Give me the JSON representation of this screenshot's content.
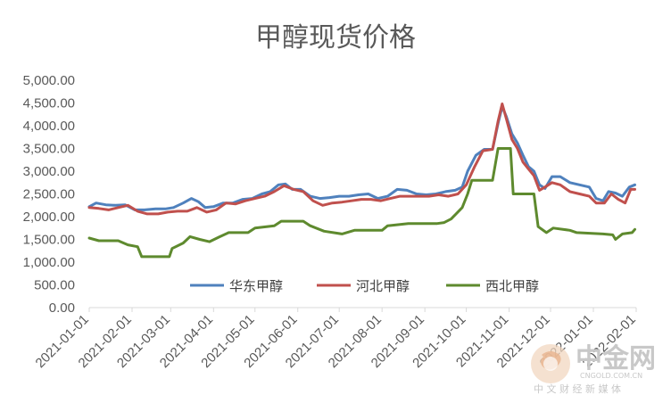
{
  "chart_data": {
    "type": "line",
    "title": "甲醇现货价格",
    "xlabel": "",
    "ylabel": "",
    "ylim": [
      0,
      5000
    ],
    "yticks": [
      "0.00",
      "500.00",
      "1,000.00",
      "1,500.00",
      "2,000.00",
      "2,500.00",
      "3,000.00",
      "3,500.00",
      "4,000.00",
      "4,500.00",
      "5,000.00"
    ],
    "xticks": [
      "2021-01-01",
      "2021-02-01",
      "2021-03-01",
      "2021-04-01",
      "2021-05-01",
      "2021-06-01",
      "2021-07-01",
      "2021-08-01",
      "2021-09-01",
      "2021-10-01",
      "2021-11-01",
      "2021-12-01",
      "2022-01-01",
      "2022-02-01"
    ],
    "xrange": [
      "2021-01-01",
      "2022-02-01"
    ],
    "grid": false,
    "legend": "bottom-center",
    "series": [
      {
        "name": "华东甲醇",
        "color": "#4f81bd",
        "points": [
          [
            "2021-01-01",
            2220
          ],
          [
            "2021-01-06",
            2300
          ],
          [
            "2021-01-13",
            2260
          ],
          [
            "2021-01-20",
            2250
          ],
          [
            "2021-01-27",
            2260
          ],
          [
            "2021-02-03",
            2150
          ],
          [
            "2021-02-10",
            2150
          ],
          [
            "2021-02-18",
            2170
          ],
          [
            "2021-02-25",
            2170
          ],
          [
            "2021-03-03",
            2200
          ],
          [
            "2021-03-10",
            2300
          ],
          [
            "2021-03-16",
            2400
          ],
          [
            "2021-03-21",
            2330
          ],
          [
            "2021-03-26",
            2200
          ],
          [
            "2021-04-01",
            2220
          ],
          [
            "2021-04-08",
            2300
          ],
          [
            "2021-04-15",
            2300
          ],
          [
            "2021-04-22",
            2380
          ],
          [
            "2021-04-29",
            2400
          ],
          [
            "2021-05-06",
            2500
          ],
          [
            "2021-05-12",
            2550
          ],
          [
            "2021-05-18",
            2700
          ],
          [
            "2021-05-23",
            2720
          ],
          [
            "2021-05-28",
            2600
          ],
          [
            "2021-06-03",
            2600
          ],
          [
            "2021-06-10",
            2450
          ],
          [
            "2021-06-17",
            2400
          ],
          [
            "2021-06-24",
            2420
          ],
          [
            "2021-07-01",
            2450
          ],
          [
            "2021-07-08",
            2450
          ],
          [
            "2021-07-15",
            2480
          ],
          [
            "2021-07-22",
            2500
          ],
          [
            "2021-07-29",
            2400
          ],
          [
            "2021-08-05",
            2450
          ],
          [
            "2021-08-12",
            2600
          ],
          [
            "2021-08-19",
            2580
          ],
          [
            "2021-08-26",
            2500
          ],
          [
            "2021-09-02",
            2480
          ],
          [
            "2021-09-09",
            2500
          ],
          [
            "2021-09-16",
            2550
          ],
          [
            "2021-09-23",
            2580
          ],
          [
            "2021-09-28",
            2650
          ],
          [
            "2021-10-02",
            3000
          ],
          [
            "2021-10-08",
            3350
          ],
          [
            "2021-10-14",
            3480
          ],
          [
            "2021-10-20",
            3480
          ],
          [
            "2021-10-24",
            4050
          ],
          [
            "2021-10-27",
            4420
          ],
          [
            "2021-10-30",
            4200
          ],
          [
            "2021-11-03",
            3820
          ],
          [
            "2021-11-07",
            3620
          ],
          [
            "2021-11-11",
            3350
          ],
          [
            "2021-11-15",
            3100
          ],
          [
            "2021-11-19",
            3000
          ],
          [
            "2021-11-23",
            2700
          ],
          [
            "2021-11-27",
            2620
          ],
          [
            "2021-12-02",
            2880
          ],
          [
            "2021-12-08",
            2880
          ],
          [
            "2021-12-15",
            2750
          ],
          [
            "2021-12-22",
            2700
          ],
          [
            "2021-12-29",
            2650
          ],
          [
            "2022-01-03",
            2400
          ],
          [
            "2022-01-08",
            2350
          ],
          [
            "2022-01-12",
            2550
          ],
          [
            "2022-01-17",
            2520
          ],
          [
            "2022-01-22",
            2450
          ],
          [
            "2022-01-27",
            2650
          ],
          [
            "2022-01-31",
            2700
          ]
        ]
      },
      {
        "name": "河北甲醇",
        "color": "#c0504d",
        "points": [
          [
            "2021-01-01",
            2200
          ],
          [
            "2021-01-08",
            2180
          ],
          [
            "2021-01-15",
            2150
          ],
          [
            "2021-01-22",
            2200
          ],
          [
            "2021-01-29",
            2250
          ],
          [
            "2021-02-05",
            2120
          ],
          [
            "2021-02-12",
            2060
          ],
          [
            "2021-02-20",
            2060
          ],
          [
            "2021-02-27",
            2100
          ],
          [
            "2021-03-06",
            2120
          ],
          [
            "2021-03-13",
            2120
          ],
          [
            "2021-03-20",
            2200
          ],
          [
            "2021-03-27",
            2100
          ],
          [
            "2021-04-03",
            2150
          ],
          [
            "2021-04-10",
            2300
          ],
          [
            "2021-04-17",
            2280
          ],
          [
            "2021-04-24",
            2350
          ],
          [
            "2021-05-01",
            2400
          ],
          [
            "2021-05-08",
            2450
          ],
          [
            "2021-05-15",
            2550
          ],
          [
            "2021-05-22",
            2680
          ],
          [
            "2021-05-29",
            2600
          ],
          [
            "2021-06-05",
            2550
          ],
          [
            "2021-06-12",
            2350
          ],
          [
            "2021-06-19",
            2250
          ],
          [
            "2021-06-26",
            2300
          ],
          [
            "2021-07-03",
            2320
          ],
          [
            "2021-07-10",
            2350
          ],
          [
            "2021-07-17",
            2380
          ],
          [
            "2021-07-24",
            2380
          ],
          [
            "2021-07-31",
            2350
          ],
          [
            "2021-08-07",
            2400
          ],
          [
            "2021-08-14",
            2450
          ],
          [
            "2021-08-21",
            2450
          ],
          [
            "2021-08-28",
            2450
          ],
          [
            "2021-09-04",
            2450
          ],
          [
            "2021-09-11",
            2480
          ],
          [
            "2021-09-18",
            2450
          ],
          [
            "2021-09-25",
            2500
          ],
          [
            "2021-10-01",
            2700
          ],
          [
            "2021-10-07",
            3100
          ],
          [
            "2021-10-13",
            3450
          ],
          [
            "2021-10-20",
            3480
          ],
          [
            "2021-10-24",
            4100
          ],
          [
            "2021-10-27",
            4480
          ],
          [
            "2021-10-30",
            4150
          ],
          [
            "2021-11-03",
            3700
          ],
          [
            "2021-11-07",
            3500
          ],
          [
            "2021-11-11",
            3200
          ],
          [
            "2021-11-15",
            3050
          ],
          [
            "2021-11-19",
            2900
          ],
          [
            "2021-11-23",
            2580
          ],
          [
            "2021-11-27",
            2650
          ],
          [
            "2021-12-02",
            2750
          ],
          [
            "2021-12-08",
            2700
          ],
          [
            "2021-12-15",
            2550
          ],
          [
            "2021-12-22",
            2500
          ],
          [
            "2021-12-29",
            2450
          ],
          [
            "2022-01-03",
            2300
          ],
          [
            "2022-01-09",
            2300
          ],
          [
            "2022-01-14",
            2500
          ],
          [
            "2022-01-19",
            2380
          ],
          [
            "2022-01-24",
            2300
          ],
          [
            "2022-01-28",
            2600
          ],
          [
            "2022-01-31",
            2600
          ]
        ]
      },
      {
        "name": "西北甲醇",
        "color": "#5e8a2e",
        "points": [
          [
            "2021-01-01",
            1530
          ],
          [
            "2021-01-08",
            1470
          ],
          [
            "2021-01-22",
            1470
          ],
          [
            "2021-01-29",
            1380
          ],
          [
            "2021-02-05",
            1340
          ],
          [
            "2021-02-08",
            1120
          ],
          [
            "2021-02-28",
            1120
          ],
          [
            "2021-03-02",
            1300
          ],
          [
            "2021-03-10",
            1420
          ],
          [
            "2021-03-15",
            1560
          ],
          [
            "2021-03-22",
            1500
          ],
          [
            "2021-03-29",
            1450
          ],
          [
            "2021-04-05",
            1550
          ],
          [
            "2021-04-12",
            1650
          ],
          [
            "2021-04-26",
            1650
          ],
          [
            "2021-05-01",
            1750
          ],
          [
            "2021-05-15",
            1800
          ],
          [
            "2021-05-20",
            1900
          ],
          [
            "2021-06-05",
            1900
          ],
          [
            "2021-06-10",
            1800
          ],
          [
            "2021-06-20",
            1680
          ],
          [
            "2021-07-03",
            1620
          ],
          [
            "2021-07-12",
            1700
          ],
          [
            "2021-08-01",
            1700
          ],
          [
            "2021-08-05",
            1800
          ],
          [
            "2021-08-20",
            1850
          ],
          [
            "2021-09-10",
            1850
          ],
          [
            "2021-09-15",
            1870
          ],
          [
            "2021-09-20",
            1950
          ],
          [
            "2021-09-28",
            2200
          ],
          [
            "2021-10-02",
            2500
          ],
          [
            "2021-10-05",
            2800
          ],
          [
            "2021-10-20",
            2800
          ],
          [
            "2021-10-24",
            3500
          ],
          [
            "2021-11-02",
            3500
          ],
          [
            "2021-11-04",
            2500
          ],
          [
            "2021-11-19",
            2500
          ],
          [
            "2021-11-22",
            1780
          ],
          [
            "2021-11-28",
            1650
          ],
          [
            "2021-12-03",
            1750
          ],
          [
            "2021-12-15",
            1700
          ],
          [
            "2021-12-20",
            1650
          ],
          [
            "2022-01-08",
            1620
          ],
          [
            "2022-01-15",
            1600
          ],
          [
            "2022-01-17",
            1500
          ],
          [
            "2022-01-22",
            1620
          ],
          [
            "2022-01-29",
            1650
          ],
          [
            "2022-01-31",
            1720
          ]
        ]
      }
    ]
  },
  "watermark": {
    "brand": "中金网",
    "domain": "CNGOLD.COM.CN",
    "slogan": "中 文 财 经 新 媒 体"
  }
}
